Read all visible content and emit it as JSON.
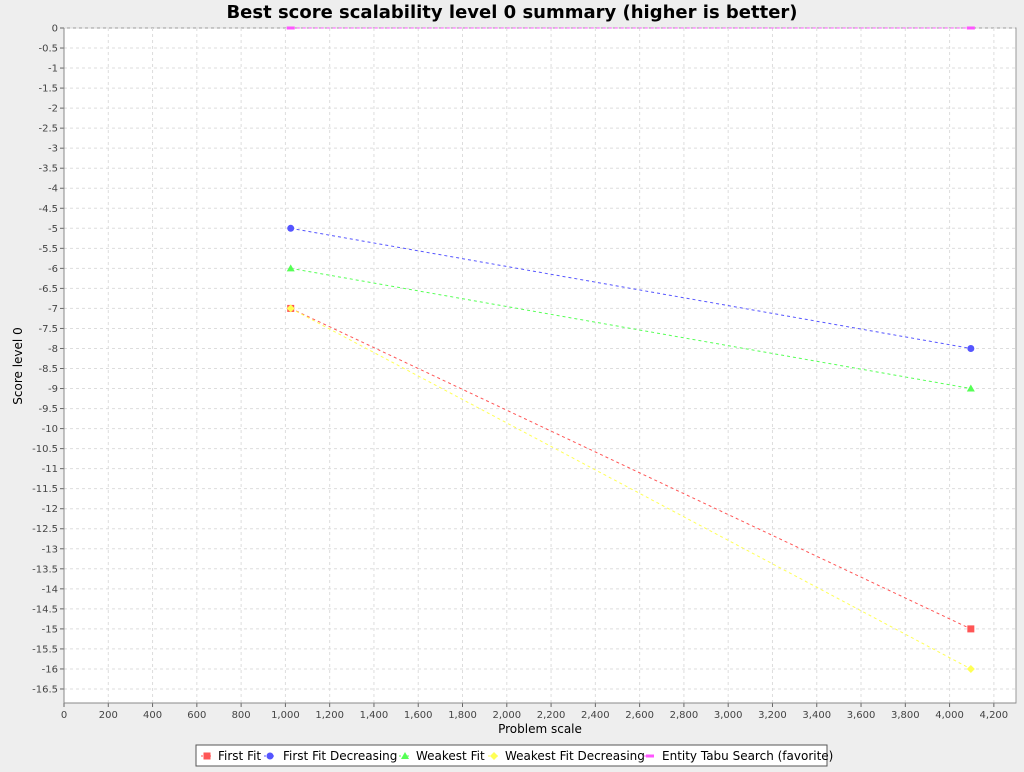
{
  "chart_data": {
    "type": "line",
    "title": "Best score scalability level 0 summary (higher is better)",
    "xlabel": "Problem scale",
    "ylabel": "Score level 0",
    "xlim": [
      0,
      4300
    ],
    "ylim": [
      -16.85,
      0
    ],
    "x_ticks": [
      0,
      200,
      400,
      600,
      800,
      1000,
      1200,
      1400,
      1600,
      1800,
      2000,
      2200,
      2400,
      2600,
      2800,
      3000,
      3200,
      3400,
      3600,
      3800,
      4000,
      4200
    ],
    "x_tick_labels": [
      "0",
      "200",
      "400",
      "600",
      "800",
      "1,000",
      "1,200",
      "1,400",
      "1,600",
      "1,800",
      "2,000",
      "2,200",
      "2,400",
      "2,600",
      "2,800",
      "3,000",
      "3,200",
      "3,400",
      "3,600",
      "3,800",
      "4,000",
      "4,200"
    ],
    "y_ticks": [
      0,
      -0.5,
      -1,
      -1.5,
      -2,
      -2.5,
      -3,
      -3.5,
      -4,
      -4.5,
      -5,
      -5.5,
      -6,
      -6.5,
      -7,
      -7.5,
      -8,
      -8.5,
      -9,
      -9.5,
      -10,
      -10.5,
      -11,
      -11.5,
      -12,
      -12.5,
      -13,
      -13.5,
      -14,
      -14.5,
      -15,
      -15.5,
      -16,
      -16.5
    ],
    "y_tick_labels": [
      "0",
      "-0.5",
      "-1",
      "-1.5",
      "-2",
      "-2.5",
      "-3",
      "-3.5",
      "-4",
      "-4.5",
      "-5",
      "-5.5",
      "-6",
      "-6.5",
      "-7",
      "-7.5",
      "-8",
      "-8.5",
      "-9",
      "-9.5",
      "-10",
      "-10.5",
      "-11",
      "-11.5",
      "-12",
      "-12.5",
      "-13",
      "-13.5",
      "-14",
      "-14.5",
      "-15",
      "-15.5",
      "-16",
      "-16.5"
    ],
    "grid": true,
    "legend_placement": "bottom-center",
    "series": [
      {
        "name": "First Fit",
        "color": "#ff5555",
        "marker": "square",
        "x": [
          1024,
          4096
        ],
        "y": [
          -7,
          -15
        ]
      },
      {
        "name": "First Fit Decreasing",
        "color": "#5555ff",
        "marker": "circle",
        "x": [
          1024,
          4096
        ],
        "y": [
          -5,
          -8
        ]
      },
      {
        "name": "Weakest Fit",
        "color": "#55ff55",
        "marker": "triangle",
        "x": [
          1024,
          4096
        ],
        "y": [
          -6,
          -9
        ]
      },
      {
        "name": "Weakest Fit Decreasing",
        "color": "#ffff55",
        "marker": "diamond",
        "x": [
          1024,
          4096
        ],
        "y": [
          -7,
          -16
        ]
      },
      {
        "name": "Entity Tabu Search (favorite)",
        "color": "#ff55ff",
        "marker": "bar",
        "x": [
          1024,
          4096
        ],
        "y": [
          0,
          0
        ]
      }
    ]
  }
}
